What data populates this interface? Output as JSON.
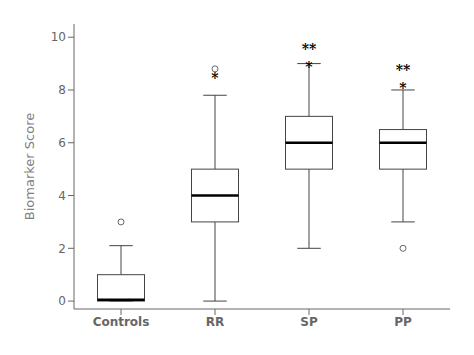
{
  "chart_data": {
    "type": "box",
    "categories": [
      "Controls",
      "RR",
      "SP",
      "PP"
    ],
    "boxes": [
      {
        "q1": 0.0,
        "median": 0.05,
        "q3": 1.0,
        "whislo": 0.0,
        "whishi": 2.1,
        "fliers": [
          3.0
        ]
      },
      {
        "q1": 3.0,
        "median": 4.0,
        "q3": 5.0,
        "whislo": 0.0,
        "whishi": 7.8,
        "fliers": [
          8.8
        ]
      },
      {
        "q1": 5.0,
        "median": 6.0,
        "q3": 7.0,
        "whislo": 2.0,
        "whishi": 9.0,
        "fliers": []
      },
      {
        "q1": 5.0,
        "median": 6.0,
        "q3": 6.5,
        "whislo": 3.0,
        "whishi": 8.0,
        "fliers": [
          2.0
        ]
      }
    ],
    "annotations": [
      {
        "x": "RR",
        "y": 8.25,
        "text": "*"
      },
      {
        "x": "SP",
        "y": 9.35,
        "text": "**"
      },
      {
        "x": "SP",
        "y": 8.7,
        "text": "*"
      },
      {
        "x": "PP",
        "y": 8.55,
        "text": "**"
      },
      {
        "x": "PP",
        "y": 7.9,
        "text": "*"
      }
    ],
    "ylabel": "Biomarker Score",
    "ylim": [
      -0.3,
      10.5
    ],
    "yticks": [
      0,
      2,
      4,
      6,
      8,
      10
    ],
    "color": "#444444"
  }
}
